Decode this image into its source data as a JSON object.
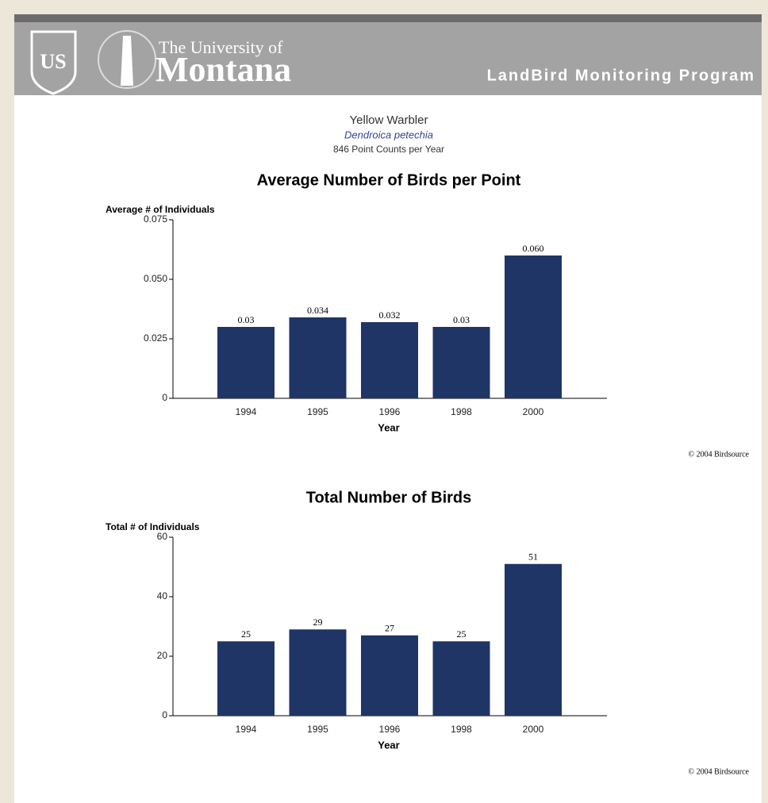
{
  "header": {
    "line1": "The University of",
    "line2": "Montana",
    "program": "LandBird Monitoring Program"
  },
  "species": {
    "common_name": "Yellow Warbler",
    "scientific_name": "Dendroica petechia",
    "counts": "846 Point Counts per Year"
  },
  "chart_data": [
    {
      "type": "bar",
      "title": "Average Number of Birds per Point",
      "y_label": "Average # of Individuals",
      "x_label": "Year",
      "categories": [
        "1994",
        "1995",
        "1996",
        "1998",
        "2000"
      ],
      "values": [
        0.03,
        0.034,
        0.032,
        0.03,
        0.06
      ],
      "value_labels": [
        "0.03",
        "0.034",
        "0.032",
        "0.03",
        "0.060"
      ],
      "color": "#1e3565",
      "ylim": [
        0,
        0.075
      ],
      "yticks": [
        0,
        0.025,
        {
          "value": 0.05,
          "label": "0.050"
        },
        0.075
      ],
      "grid": false,
      "credit": "© 2004 Birdsource"
    },
    {
      "type": "bar",
      "title": "Total Number of Birds",
      "y_label": "Total # of Individuals",
      "x_label": "Year",
      "categories": [
        "1994",
        "1995",
        "1996",
        "1998",
        "2000"
      ],
      "values": [
        25,
        29,
        27,
        25,
        51
      ],
      "color": "#1e3565",
      "ylim": [
        0,
        60
      ],
      "yticks": [
        0,
        20,
        40,
        60
      ],
      "grid": false,
      "credit": "© 2004 Birdsource"
    }
  ]
}
